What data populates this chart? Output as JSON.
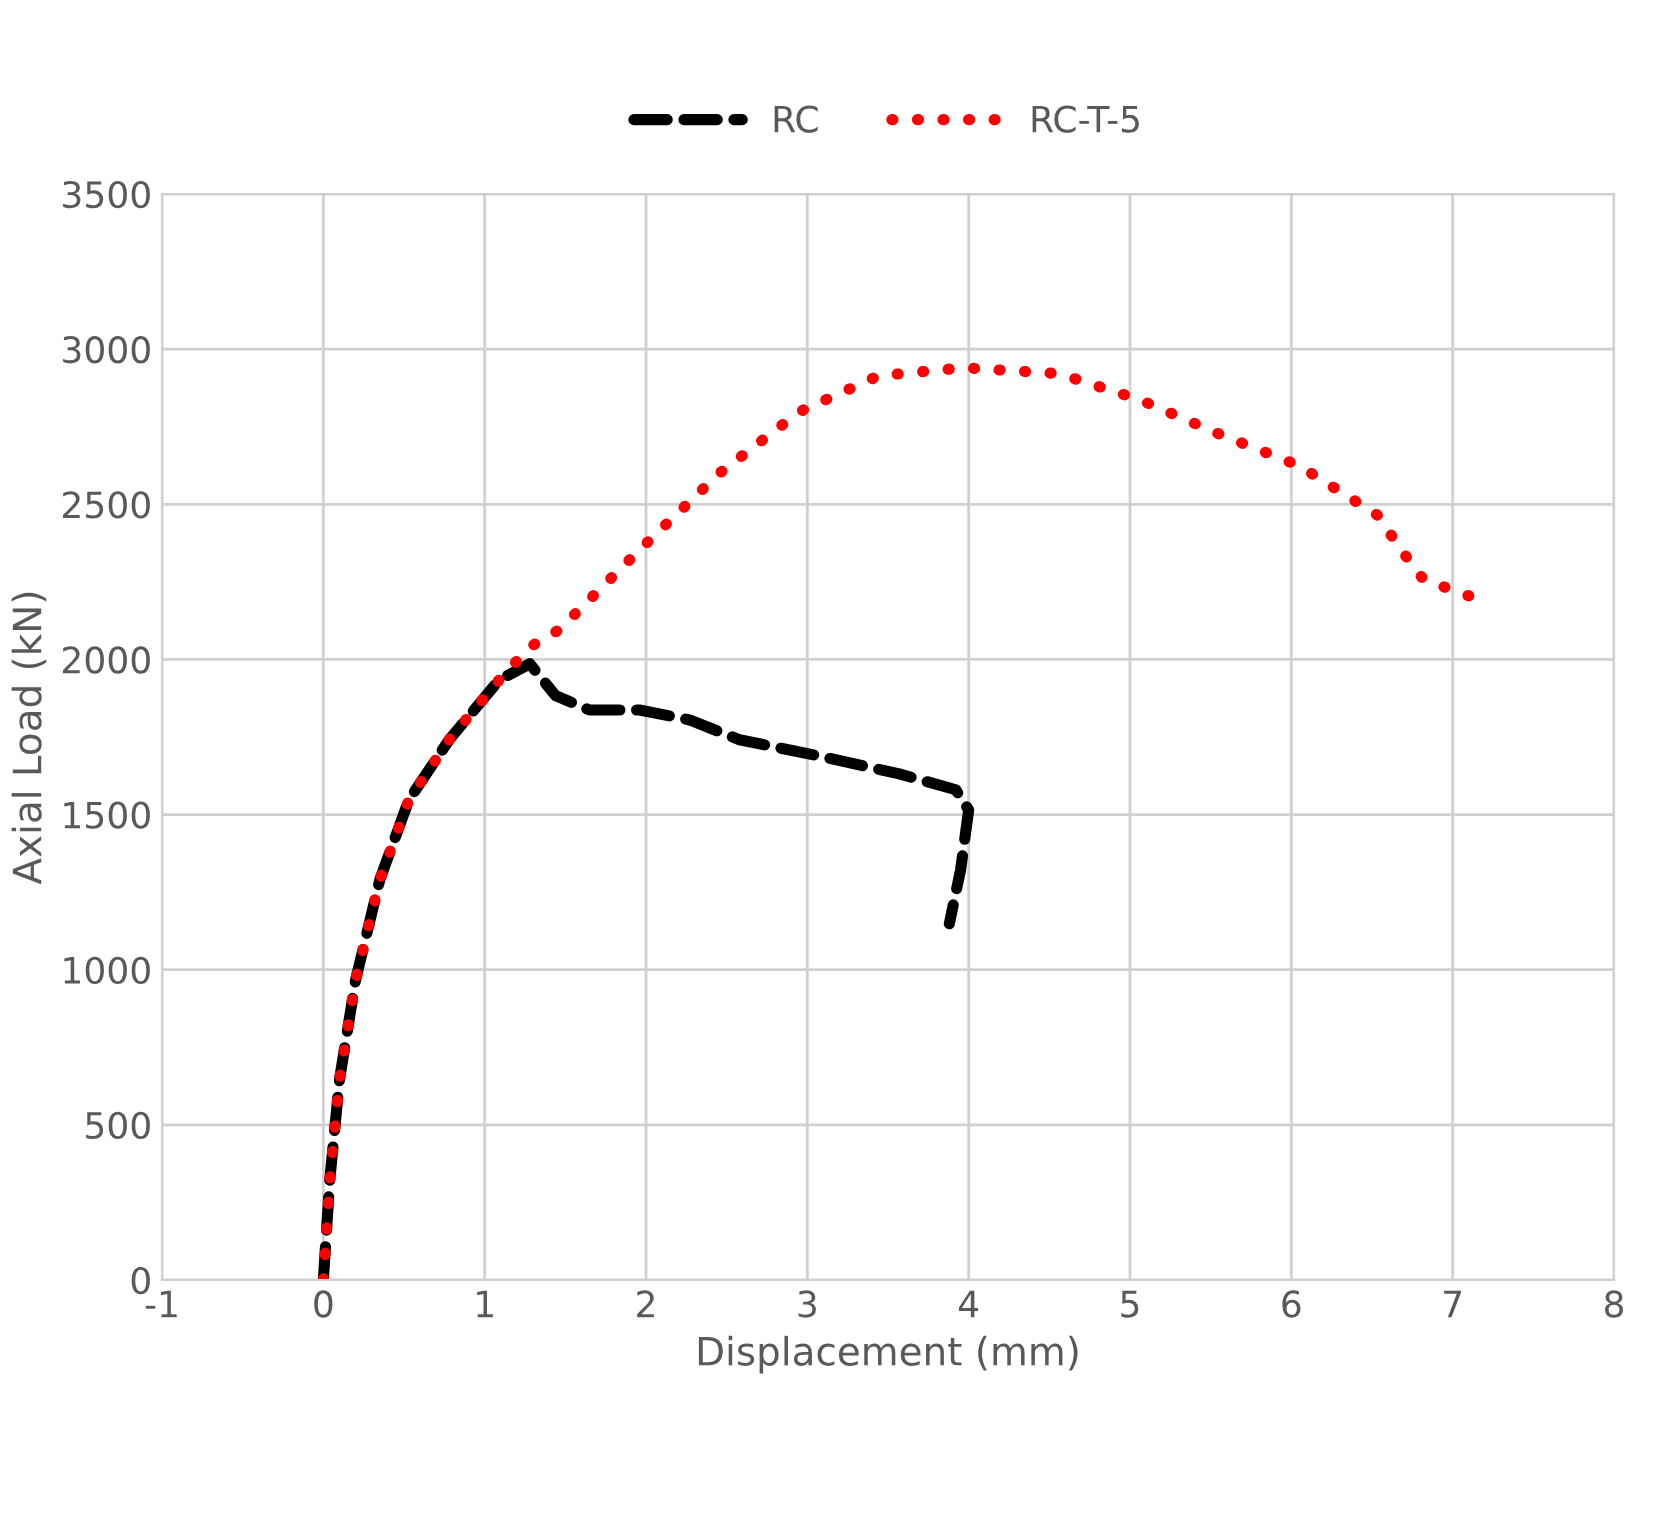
{
  "chart_data": {
    "type": "line",
    "xlabel": "Displacement (mm)",
    "ylabel": "Axial Load (kN)",
    "xlim": [
      -1,
      8
    ],
    "xticks": [
      -1,
      0,
      1,
      2,
      3,
      4,
      5,
      6,
      7,
      8
    ],
    "ylim": [
      0,
      3500
    ],
    "yticks": [
      0,
      500,
      1000,
      1500,
      2000,
      2500,
      3000,
      3500
    ],
    "grid": true,
    "legend": "top",
    "marker": "none",
    "series": [
      {
        "name": "RC",
        "color": "#000000",
        "line_style": "dashed",
        "x": [
          0,
          0.04,
          0.1,
          0.2,
          0.35,
          0.53,
          0.78,
          1.09,
          1.28,
          1.44,
          1.65,
          1.96,
          2.27,
          2.58,
          3.07,
          3.57,
          3.92,
          4.0,
          3.95,
          3.88
        ],
        "values": [
          0,
          322,
          645,
          967,
          1290,
          1547,
          1741,
          1934,
          1986,
          1883,
          1837,
          1837,
          1805,
          1741,
          1689,
          1631,
          1580,
          1515,
          1322,
          1148
        ]
      },
      {
        "name": "RC-T-5",
        "color": "#ff0000",
        "line_style": "dotted",
        "x": [
          0,
          0.04,
          0.1,
          0.2,
          0.35,
          0.53,
          0.78,
          1.09,
          1.28,
          1.46,
          1.96,
          2.45,
          2.95,
          3.44,
          3.97,
          4.56,
          5.06,
          5.55,
          6.05,
          6.54,
          6.67,
          6.82,
          7.1
        ],
        "values": [
          0,
          322,
          645,
          967,
          1290,
          1547,
          1741,
          1934,
          2040,
          2095,
          2353,
          2598,
          2798,
          2914,
          2940,
          2921,
          2837,
          2727,
          2624,
          2463,
          2360,
          2257,
          2205
        ]
      }
    ]
  }
}
